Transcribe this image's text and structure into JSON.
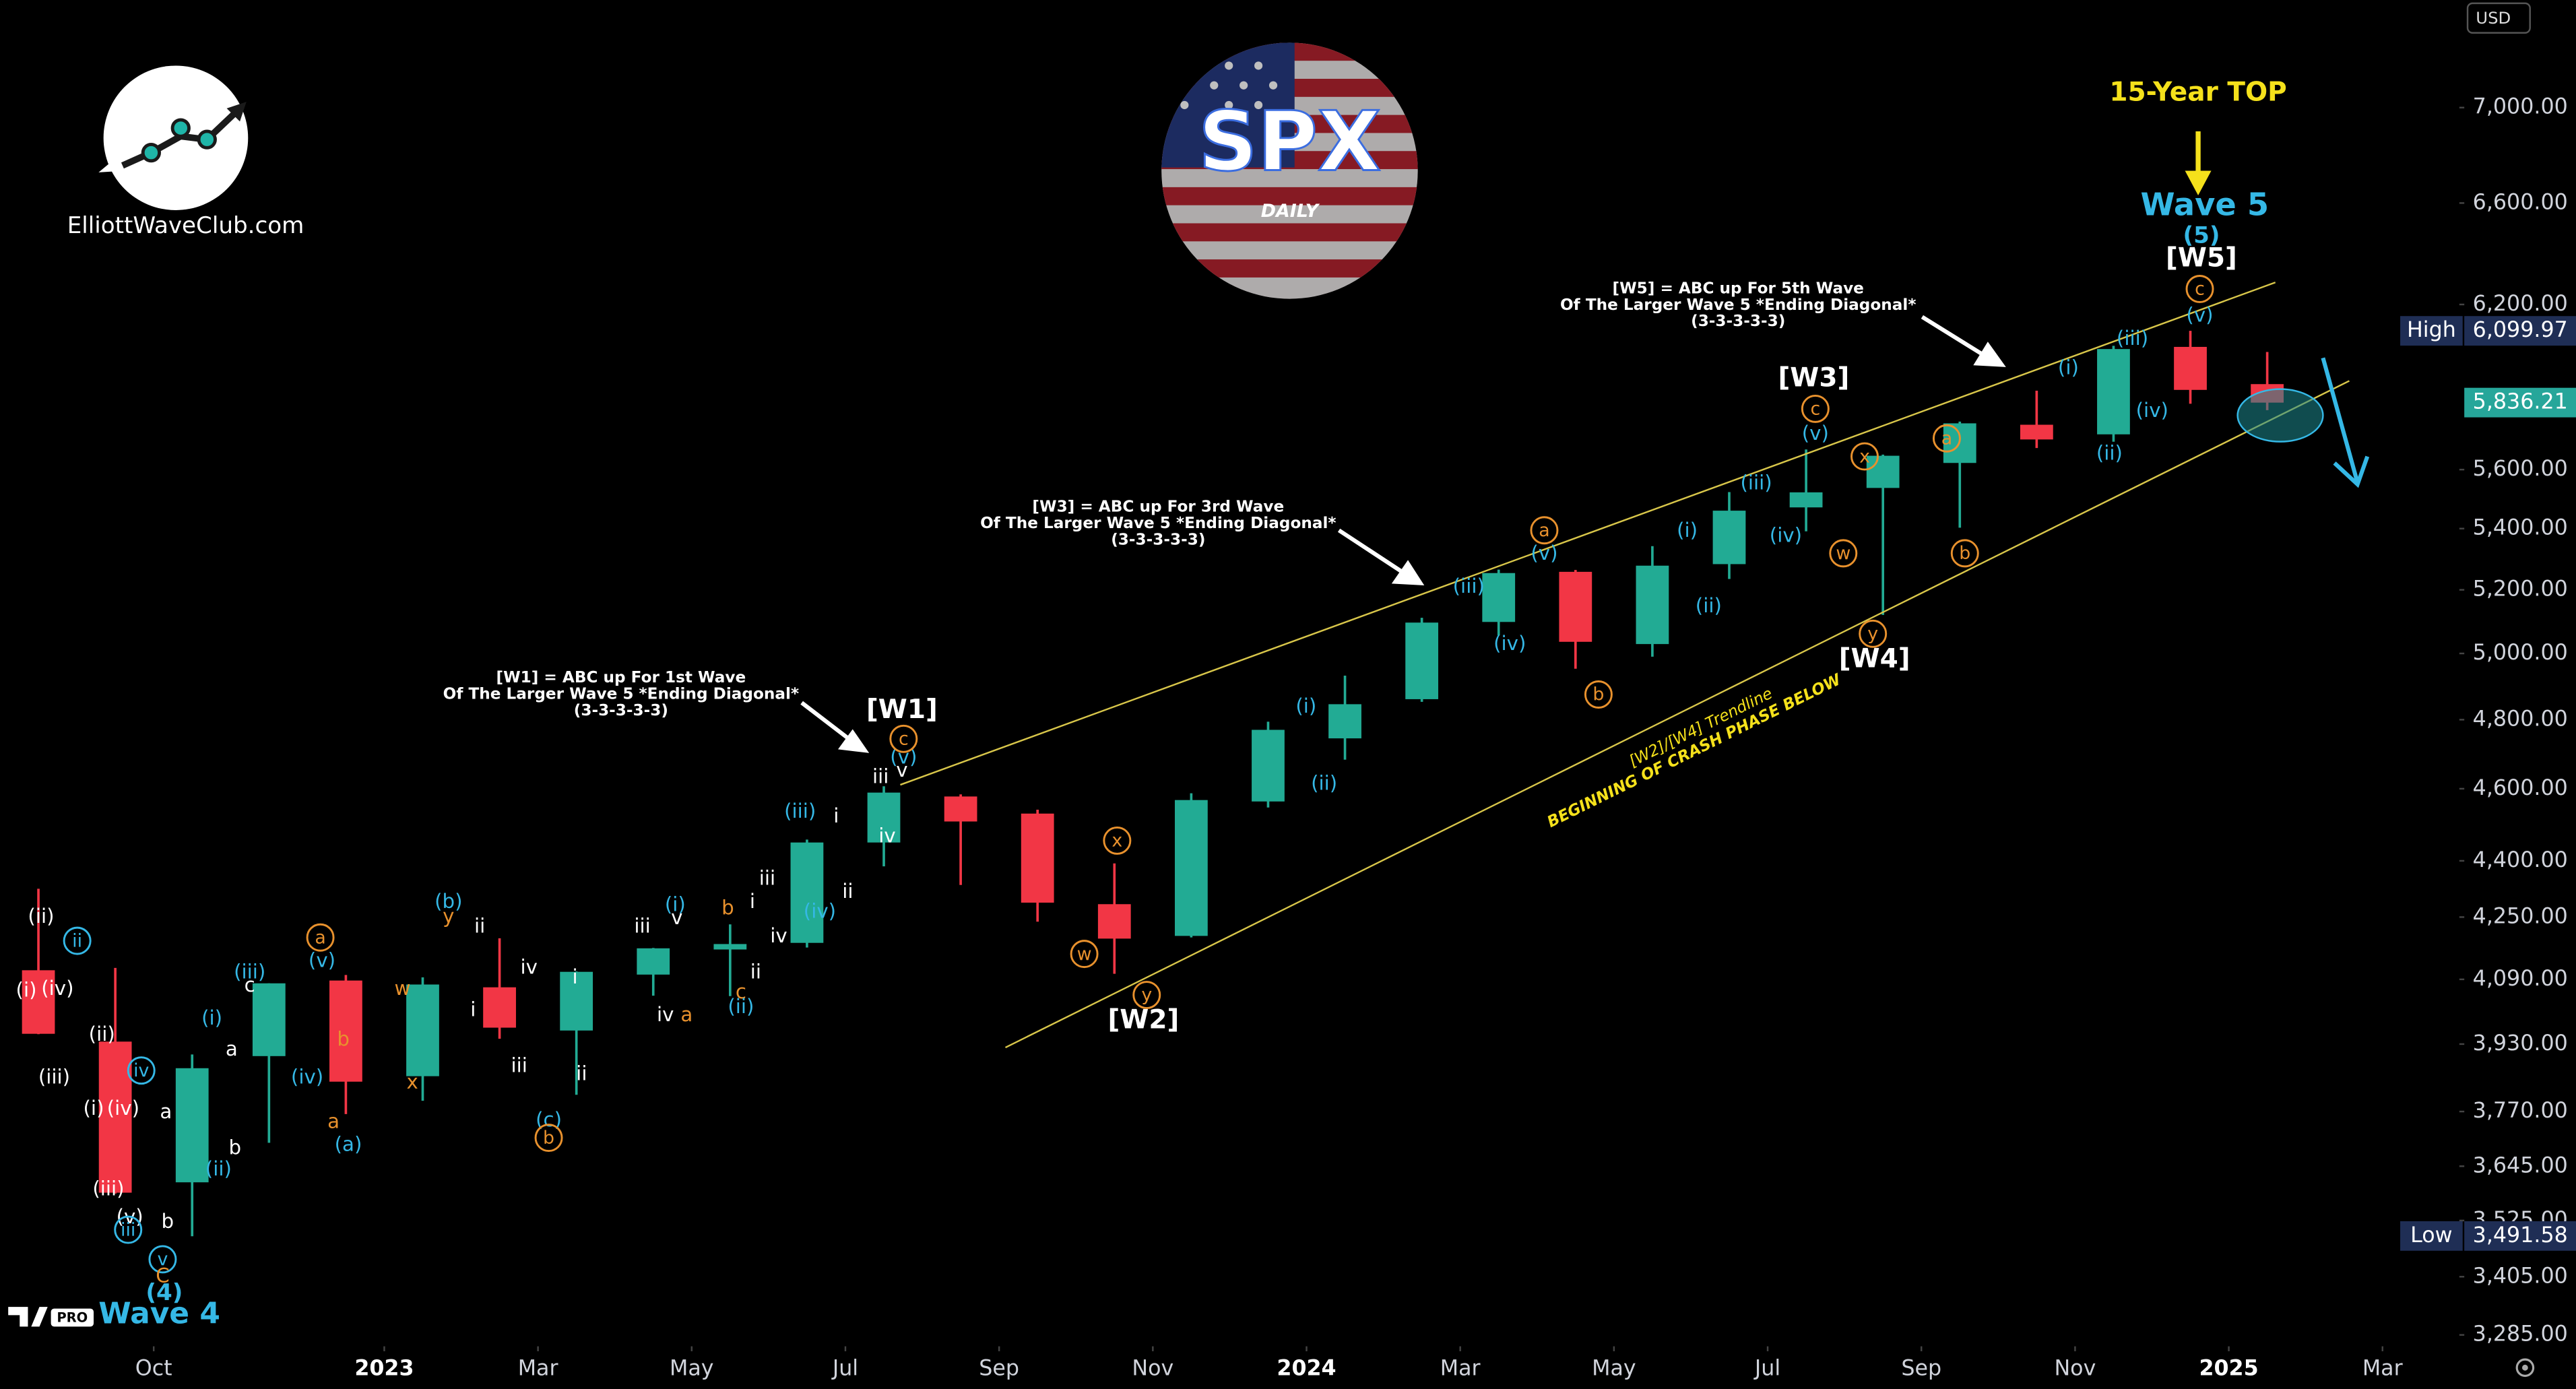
{
  "chart_data": {
    "type": "candlestick",
    "x": [
      "2022-08",
      "2022-09",
      "2022-10",
      "2022-11",
      "2022-12",
      "2023-01",
      "2023-02",
      "2023-03",
      "2023-04",
      "2023-05",
      "2023-06",
      "2023-07",
      "2023-08",
      "2023-09",
      "2023-10",
      "2023-11",
      "2023-12",
      "2024-01",
      "2024-02",
      "2024-03",
      "2024-04",
      "2024-05",
      "2024-06",
      "2024-07",
      "2024-08",
      "2024-09",
      "2024-10",
      "2024-11",
      "2024-12",
      "2025-01"
    ],
    "open": [
      4113,
      3936,
      3609,
      3901,
      4087,
      3853,
      4070,
      3963,
      4102,
      4166,
      4183,
      4450,
      4578,
      4530,
      4284,
      4201,
      4564,
      4745,
      4861,
      5098,
      5258,
      5029,
      5283,
      5471,
      5537,
      5623,
      5757,
      5723,
      6040,
      5903
    ],
    "high": [
      4325,
      4119,
      3905,
      4080,
      4101,
      4095,
      4195,
      4110,
      4170,
      4231,
      4458,
      4607,
      4584,
      4541,
      4393,
      4587,
      4794,
      4932,
      5111,
      5265,
      5264,
      5342,
      5523,
      5670,
      5652,
      5768,
      5879,
      6044,
      6100,
      6021
    ],
    "low": [
      3954,
      3584,
      3491,
      3698,
      3764,
      3795,
      3943,
      3809,
      4049,
      4048,
      4171,
      4385,
      4335,
      4238,
      4104,
      4197,
      4547,
      4683,
      4853,
      5056,
      4953,
      4990,
      5235,
      5391,
      5120,
      5403,
      5675,
      5697,
      5832,
      5809
    ],
    "close": [
      3955,
      3586,
      3872,
      4080,
      3840,
      4077,
      3970,
      4109,
      4169,
      4180,
      4450,
      4589,
      4508,
      4288,
      4194,
      4568,
      4770,
      4846,
      5096,
      5254,
      5036,
      5278,
      5460,
      5522,
      5648,
      5762,
      5705,
      6032,
      5882,
      5836
    ],
    "up_color": "#22ab94",
    "down_color": "#f23645",
    "xlim": [
      "2022-08",
      "2025-04"
    ],
    "xticks": [
      {
        "value": "2022-10",
        "label": "Oct"
      },
      {
        "value": "2023-01",
        "label": "2023"
      },
      {
        "value": "2023-03",
        "label": "Mar"
      },
      {
        "value": "2023-05",
        "label": "May"
      },
      {
        "value": "2023-07",
        "label": "Jul"
      },
      {
        "value": "2023-09",
        "label": "Sep"
      },
      {
        "value": "2023-11",
        "label": "Nov"
      },
      {
        "value": "2024-01",
        "label": "2024"
      },
      {
        "value": "2024-03",
        "label": "Mar"
      },
      {
        "value": "2024-05",
        "label": "May"
      },
      {
        "value": "2024-07",
        "label": "Jul"
      },
      {
        "value": "2024-09",
        "label": "Sep"
      },
      {
        "value": "2024-11",
        "label": "Nov"
      },
      {
        "value": "2025-01",
        "label": "2025"
      },
      {
        "value": "2025-03",
        "label": "Mar"
      }
    ],
    "ylim": [
      3262,
      7480
    ],
    "yticks": [
      {
        "value": 3285,
        "label": "3,285.00"
      },
      {
        "value": 3405,
        "label": "3,405.00"
      },
      {
        "value": 3525,
        "label": "3,525.00"
      },
      {
        "value": 3645,
        "label": "3,645.00"
      },
      {
        "value": 3770,
        "label": "3,770.00"
      },
      {
        "value": 3930,
        "label": "3,930.00"
      },
      {
        "value": 4090,
        "label": "4,090.00"
      },
      {
        "value": 4250,
        "label": "4,250.00"
      },
      {
        "value": 4400,
        "label": "4,400.00"
      },
      {
        "value": 4600,
        "label": "4,600.00"
      },
      {
        "value": 4800,
        "label": "4,800.00"
      },
      {
        "value": 5000,
        "label": "5,000.00"
      },
      {
        "value": 5200,
        "label": "5,200.00"
      },
      {
        "value": 5400,
        "label": "5,400.00"
      },
      {
        "value": 5600,
        "label": "5,600.00"
      },
      {
        "value": 6200,
        "label": "6,200.00"
      },
      {
        "value": 6600,
        "label": "6,600.00"
      },
      {
        "value": 7000,
        "label": "7,000.00"
      }
    ],
    "log_scale": true,
    "grid": false,
    "currency": "USD",
    "high_marker": {
      "label": "High",
      "value": 6099.97,
      "value_label": "6,099.97"
    },
    "last_price": {
      "value": 5836.21,
      "label": "5,836.21"
    },
    "low_marker": {
      "label": "Low",
      "value": 3491.58,
      "value_label": "3,491.58"
    },
    "major_labels": [
      {
        "text": "[W1]",
        "color": "#ffffff"
      },
      {
        "text": "[W2]",
        "color": "#ffffff"
      },
      {
        "text": "[W3]",
        "color": "#ffffff"
      },
      {
        "text": "[W4]",
        "color": "#ffffff"
      },
      {
        "text": "[W5]",
        "color": "#ffffff"
      },
      {
        "text": "Wave 5",
        "color": "#35b8e6"
      },
      {
        "text": "(5)",
        "color": "#35b8e6"
      },
      {
        "text": "15-Year TOP",
        "color": "#f5e11b"
      },
      {
        "text": "Wave 4",
        "color": "#35b8e6"
      },
      {
        "text": "(4)",
        "color": "#35b8e6"
      }
    ],
    "wave_labels": [
      {
        "text": "(ii)",
        "color": "#ffffff"
      },
      {
        "text": "ii",
        "color": "#35b8e6",
        "circled": true
      },
      {
        "text": "(i)",
        "color": "#ffffff"
      },
      {
        "text": "(iv)",
        "color": "#ffffff"
      },
      {
        "text": "(ii)",
        "color": "#ffffff"
      },
      {
        "text": "(iii)",
        "color": "#ffffff"
      },
      {
        "text": "iv",
        "color": "#35b8e6",
        "circled": true
      },
      {
        "text": "(i)",
        "color": "#ffffff"
      },
      {
        "text": "(iv)",
        "color": "#ffffff"
      },
      {
        "text": "a",
        "color": "#ffffff"
      },
      {
        "text": "(iii)",
        "color": "#ffffff"
      },
      {
        "text": "(v)",
        "color": "#ffffff"
      },
      {
        "text": "iii",
        "color": "#35b8e6",
        "circled": true
      },
      {
        "text": "b",
        "color": "#ffffff"
      },
      {
        "text": "v",
        "color": "#35b8e6",
        "circled": true
      },
      {
        "text": "C",
        "color": "#e8912d"
      },
      {
        "text": "(i)",
        "color": "#35b8e6"
      },
      {
        "text": "(ii)",
        "color": "#35b8e6"
      },
      {
        "text": "a",
        "color": "#ffffff"
      },
      {
        "text": "b",
        "color": "#ffffff"
      },
      {
        "text": "c",
        "color": "#ffffff"
      },
      {
        "text": "(iii)",
        "color": "#35b8e6"
      },
      {
        "text": "a",
        "color": "#e8912d",
        "circled": true
      },
      {
        "text": "(v)",
        "color": "#35b8e6"
      },
      {
        "text": "b",
        "color": "#e8912d"
      },
      {
        "text": "(iv)",
        "color": "#35b8e6"
      },
      {
        "text": "a",
        "color": "#e8912d"
      },
      {
        "text": "(a)",
        "color": "#35b8e6"
      },
      {
        "text": "w",
        "color": "#e8912d"
      },
      {
        "text": "x",
        "color": "#e8912d"
      },
      {
        "text": "(b)",
        "color": "#35b8e6"
      },
      {
        "text": "y",
        "color": "#e8912d"
      },
      {
        "text": "ii",
        "color": "#ffffff"
      },
      {
        "text": "i",
        "color": "#ffffff"
      },
      {
        "text": "iv",
        "color": "#ffffff"
      },
      {
        "text": "iii",
        "color": "#ffffff"
      },
      {
        "text": "(c)",
        "color": "#35b8e6"
      },
      {
        "text": "b",
        "color": "#e8912d",
        "circled": true
      },
      {
        "text": "i",
        "color": "#ffffff"
      },
      {
        "text": "ii",
        "color": "#ffffff"
      },
      {
        "text": "iii",
        "color": "#ffffff"
      },
      {
        "text": "(i)",
        "color": "#35b8e6"
      },
      {
        "text": "v",
        "color": "#ffffff"
      },
      {
        "text": "iv",
        "color": "#ffffff"
      },
      {
        "text": "a",
        "color": "#e8912d"
      },
      {
        "text": "b",
        "color": "#e8912d"
      },
      {
        "text": "c",
        "color": "#e8912d"
      },
      {
        "text": "(ii)",
        "color": "#35b8e6"
      },
      {
        "text": "i",
        "color": "#ffffff"
      },
      {
        "text": "ii",
        "color": "#ffffff"
      },
      {
        "text": "iii",
        "color": "#ffffff"
      },
      {
        "text": "iv",
        "color": "#ffffff"
      },
      {
        "text": "(iii)",
        "color": "#35b8e6"
      },
      {
        "text": "(iv)",
        "color": "#35b8e6"
      },
      {
        "text": "i",
        "color": "#ffffff"
      },
      {
        "text": "ii",
        "color": "#ffffff"
      },
      {
        "text": "iii",
        "color": "#ffffff"
      },
      {
        "text": "iv",
        "color": "#ffffff"
      },
      {
        "text": "v",
        "color": "#ffffff"
      },
      {
        "text": "(v)",
        "color": "#35b8e6"
      },
      {
        "text": "c",
        "color": "#e8912d",
        "circled": true
      },
      {
        "text": "x",
        "color": "#e8912d",
        "circled": true
      },
      {
        "text": "w",
        "color": "#e8912d",
        "circled": true
      },
      {
        "text": "y",
        "color": "#e8912d",
        "circled": true
      },
      {
        "text": "(i)",
        "color": "#35b8e6"
      },
      {
        "text": "(ii)",
        "color": "#35b8e6"
      },
      {
        "text": "(iii)",
        "color": "#35b8e6"
      },
      {
        "text": "(iv)",
        "color": "#35b8e6"
      },
      {
        "text": "a",
        "color": "#e8912d",
        "circled": true
      },
      {
        "text": "(v)",
        "color": "#35b8e6"
      },
      {
        "text": "b",
        "color": "#e8912d",
        "circled": true
      },
      {
        "text": "(i)",
        "color": "#35b8e6"
      },
      {
        "text": "(ii)",
        "color": "#35b8e6"
      },
      {
        "text": "(iii)",
        "color": "#35b8e6"
      },
      {
        "text": "(iv)",
        "color": "#35b8e6"
      },
      {
        "text": "c",
        "color": "#e8912d",
        "circled": true
      },
      {
        "text": "(v)",
        "color": "#35b8e6"
      },
      {
        "text": "x",
        "color": "#e8912d",
        "circled": true
      },
      {
        "text": "w",
        "color": "#e8912d",
        "circled": true
      },
      {
        "text": "y",
        "color": "#e8912d",
        "circled": true
      },
      {
        "text": "a",
        "color": "#e8912d",
        "circled": true
      },
      {
        "text": "b",
        "color": "#e8912d",
        "circled": true
      },
      {
        "text": "(i)",
        "color": "#35b8e6"
      },
      {
        "text": "(ii)",
        "color": "#35b8e6"
      },
      {
        "text": "(iii)",
        "color": "#35b8e6"
      },
      {
        "text": "(iv)",
        "color": "#35b8e6"
      },
      {
        "text": "c",
        "color": "#e8912d",
        "circled": true
      },
      {
        "text": "(v)",
        "color": "#35b8e6"
      }
    ],
    "notes": [
      [
        "[W1] = ABC up For 1st Wave",
        "Of The Larger Wave 5 *Ending Diagonal*",
        "(3-3-3-3-3)"
      ],
      [
        "[W3] = ABC up For 3rd Wave",
        "Of The Larger Wave 5 *Ending Diagonal*",
        "(3-3-3-3-3)"
      ],
      [
        "[W5] = ABC up For 5th Wave",
        "Of The Larger Wave 5 *Ending Diagonal*",
        "(3-3-3-3-3)"
      ]
    ],
    "trendline_note": [
      "[W2]/[W4] Trendline",
      "BEGINNING OF CRASH PHASE BELOW"
    ]
  },
  "branding": {
    "site": "ElliottWaveClub.com",
    "logo_title": "SPX",
    "logo_subtitle": "DAILY",
    "platform_badge": "PRO"
  }
}
